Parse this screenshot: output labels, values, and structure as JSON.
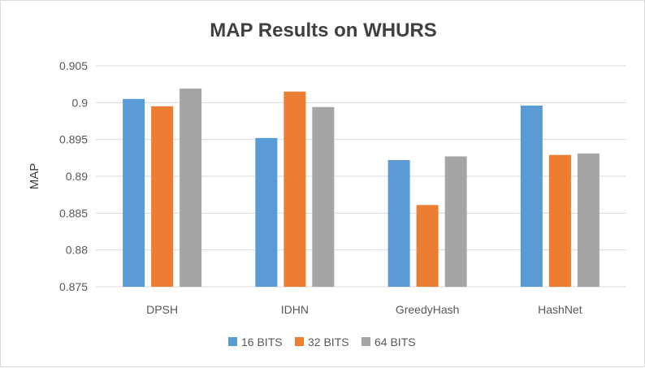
{
  "chart_data": {
    "type": "bar",
    "title": "MAP Results on WHURS",
    "xlabel": "",
    "ylabel": "MAP",
    "ylim": [
      0.875,
      0.905
    ],
    "yticks": [
      "0.875",
      "0.88",
      "0.885",
      "0.89",
      "0.895",
      "0.9",
      "0.905"
    ],
    "categories": [
      "DPSH",
      "IDHN",
      "GreedyHash",
      "HashNet"
    ],
    "series": [
      {
        "name": "16 BITS",
        "color": "#5b9bd5",
        "values": [
          0.9005,
          0.8952,
          0.8922,
          0.8996
        ]
      },
      {
        "name": "32 BITS",
        "color": "#ed7d31",
        "values": [
          0.8995,
          0.9015,
          0.8861,
          0.8929
        ]
      },
      {
        "name": "64 BITS",
        "color": "#a5a5a5",
        "values": [
          0.9019,
          0.8994,
          0.8927,
          0.8931
        ]
      }
    ],
    "grid": true,
    "legend": "bottom"
  }
}
